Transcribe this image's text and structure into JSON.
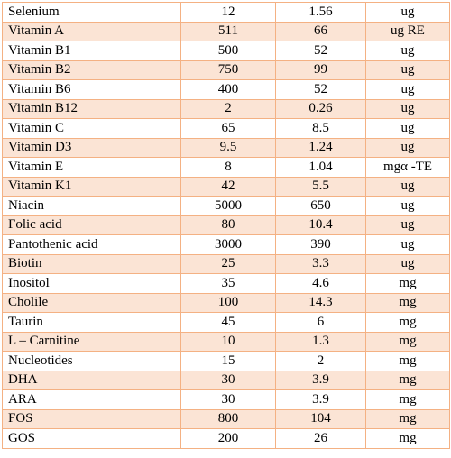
{
  "table": {
    "rows": [
      [
        "Selenium",
        "12",
        "1.56",
        "ug"
      ],
      [
        "Vitamin A",
        "511",
        "66",
        "ug RE"
      ],
      [
        "Vitamin B1",
        "500",
        "52",
        "ug"
      ],
      [
        "Vitamin B2",
        "750",
        "99",
        "ug"
      ],
      [
        "Vitamin B6",
        "400",
        "52",
        "ug"
      ],
      [
        "Vitamin B12",
        "2",
        "0.26",
        "ug"
      ],
      [
        "Vitamin C",
        "65",
        "8.5",
        "ug"
      ],
      [
        "Vitamin D3",
        "9.5",
        "1.24",
        "ug"
      ],
      [
        "Vitamin E",
        "8",
        "1.04",
        "mgα -TE"
      ],
      [
        "Vitamin K1",
        "42",
        "5.5",
        "ug"
      ],
      [
        "Niacin",
        "5000",
        "650",
        "ug"
      ],
      [
        "Folic acid",
        "80",
        "10.4",
        "ug"
      ],
      [
        "Pantothenic acid",
        "3000",
        "390",
        "ug"
      ],
      [
        "Biotin",
        "25",
        "3.3",
        "ug"
      ],
      [
        "Inositol",
        "35",
        "4.6",
        "mg"
      ],
      [
        "Cholile",
        "100",
        "14.3",
        "mg"
      ],
      [
        "Taurin",
        "45",
        "6",
        "mg"
      ],
      [
        "L – Carnitine",
        "10",
        "1.3",
        "mg"
      ],
      [
        "Nucleotides",
        "15",
        "2",
        "mg"
      ],
      [
        "DHA",
        "30",
        "3.9",
        "mg"
      ],
      [
        "ARA",
        "30",
        "3.9",
        "mg"
      ],
      [
        "FOS",
        "800",
        "104",
        "mg"
      ],
      [
        "GOS",
        "200",
        "26",
        "mg"
      ]
    ]
  }
}
